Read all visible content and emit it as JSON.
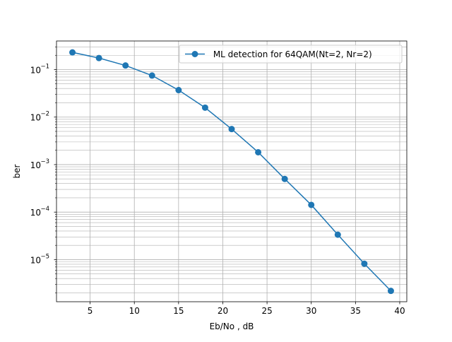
{
  "chart_data": {
    "type": "line",
    "title": "",
    "xlabel": "Eb/No , dB",
    "ylabel": "ber",
    "xlim": [
      1.2,
      40.8
    ],
    "ylim": [
      1.3e-06,
      0.4
    ],
    "yscale": "log",
    "grid": true,
    "grid_minor_y": true,
    "legend_position": "top-right",
    "xticks": [
      5,
      10,
      15,
      20,
      25,
      30,
      35,
      40
    ],
    "xtick_labels": [
      "5",
      "10",
      "15",
      "20",
      "25",
      "30",
      "35",
      "40"
    ],
    "yticks": [
      -5,
      -4,
      -3,
      -2,
      -1
    ],
    "ytick_labels": [
      "10",
      "10",
      "10",
      "10",
      "10"
    ],
    "ytick_exponents": [
      "−5",
      "−4",
      "−3",
      "−2",
      "−1"
    ],
    "series": [
      {
        "name": " ML detection for 64QAM(Nt=2, Nr=2)",
        "color": "#1f77b4",
        "marker": "circle",
        "x": [
          3,
          6,
          9,
          12,
          15,
          18,
          21,
          24,
          27,
          30,
          33,
          36,
          39
        ],
        "y": [
          0.23,
          0.175,
          0.122,
          0.075,
          0.037,
          0.0158,
          0.0056,
          0.00182,
          0.0005,
          0.000142,
          3.35e-05,
          8.2e-06,
          2.2e-06
        ]
      }
    ]
  }
}
